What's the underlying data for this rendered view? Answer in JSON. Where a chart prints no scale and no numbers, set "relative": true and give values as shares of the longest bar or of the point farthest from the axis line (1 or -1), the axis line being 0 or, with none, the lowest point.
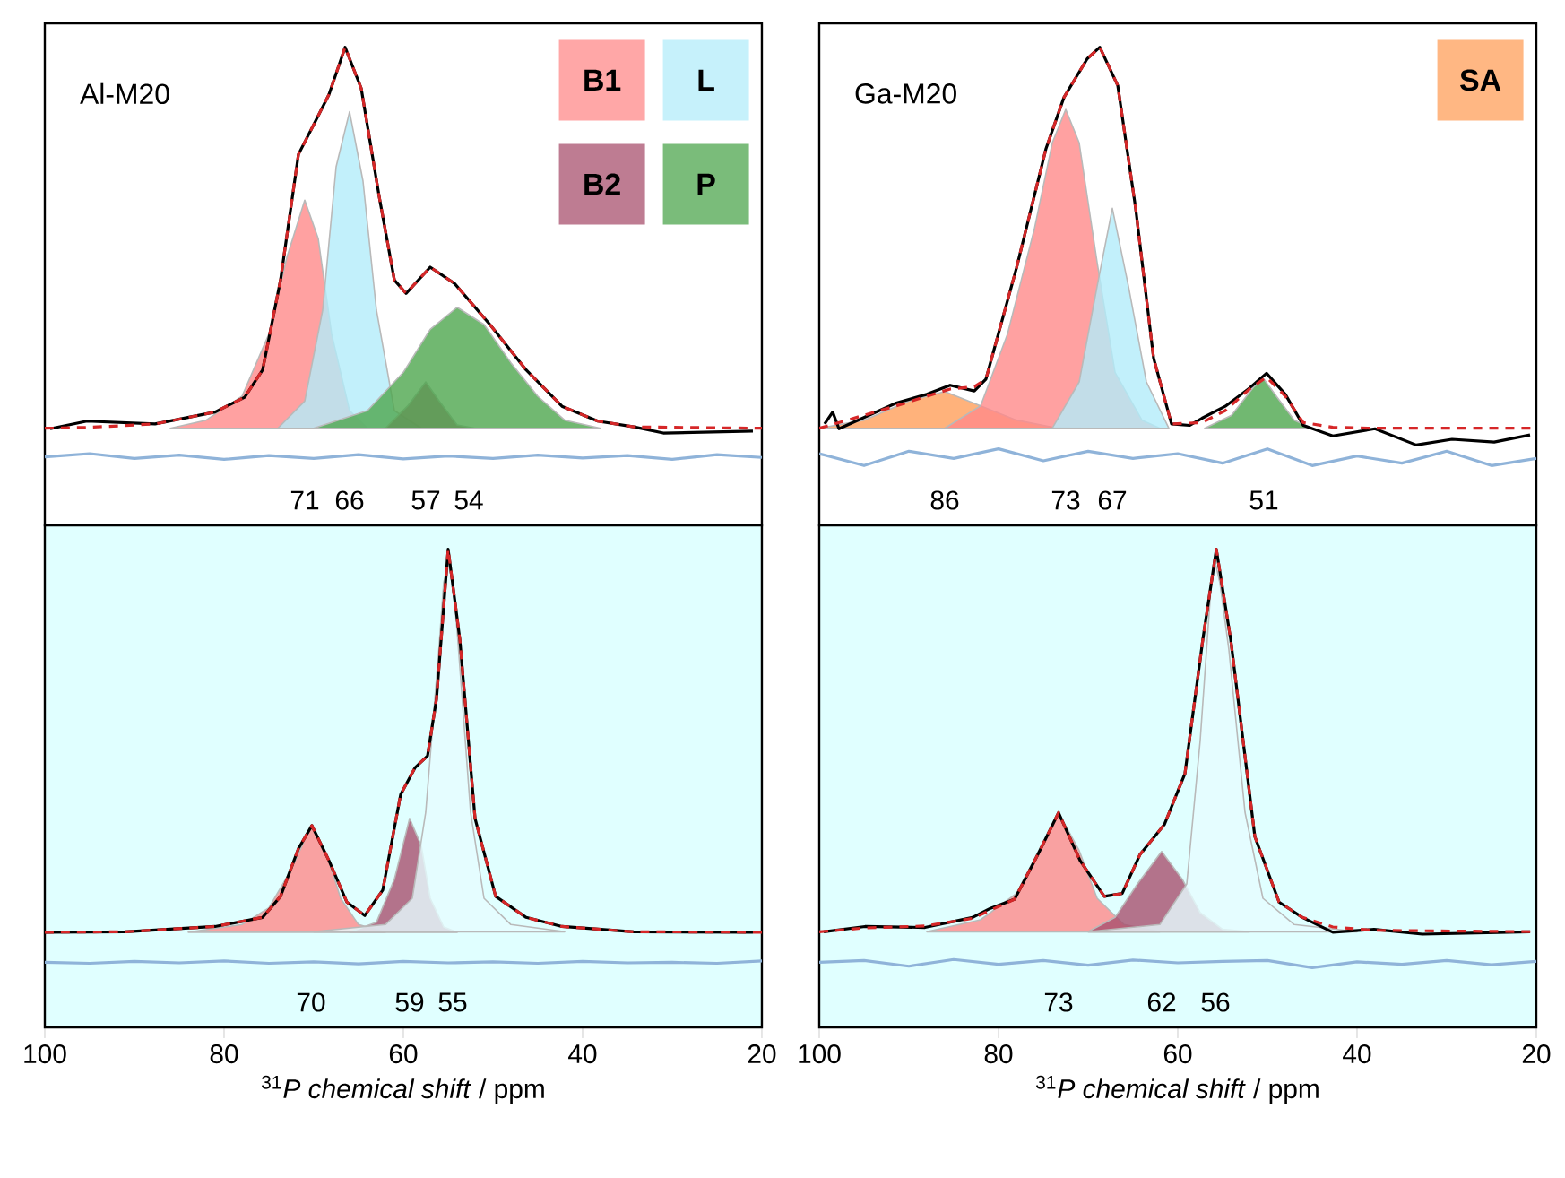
{
  "chart_data": [
    {
      "type": "line",
      "relative": true,
      "xlim": [
        100,
        20
      ],
      "tick_labels": false,
      "legend": "top right",
      "annotations": [
        "Al-M20",
        "71",
        "66",
        "57",
        "54"
      ],
      "series": [
        {
          "name": "B1",
          "type": "area",
          "color": "#ff8a8a",
          "x": [
            86,
            82,
            78,
            75,
            73,
            71,
            69.5,
            68,
            66,
            64
          ],
          "values": [
            0.203,
            0.22,
            0.27,
            0.4,
            0.56,
            0.68,
            0.6,
            0.4,
            0.24,
            0.203
          ]
        },
        {
          "name": "L",
          "type": "area",
          "color": "#b3ecfa",
          "x": [
            74,
            71,
            69,
            67.5,
            66,
            64.5,
            63,
            61,
            58
          ],
          "values": [
            0.203,
            0.26,
            0.45,
            0.75,
            0.865,
            0.72,
            0.45,
            0.24,
            0.203
          ]
        },
        {
          "name": "B2",
          "type": "area",
          "color": "#a8506e",
          "x": [
            62,
            59.5,
            57.5,
            56,
            54,
            52
          ],
          "values": [
            0.203,
            0.25,
            0.3,
            0.26,
            0.21,
            0.203
          ]
        },
        {
          "name": "P",
          "type": "area",
          "color": "#4ea64e",
          "x": [
            70,
            64,
            60,
            57,
            54,
            51,
            48,
            45,
            42,
            38
          ],
          "values": [
            0.203,
            0.24,
            0.32,
            0.41,
            0.456,
            0.42,
            0.34,
            0.27,
            0.22,
            0.203
          ]
        },
        {
          "color": "#8fb3d9",
          "x": [
            100,
            95,
            90,
            85,
            80,
            75,
            70,
            65,
            60,
            55,
            50,
            45,
            40,
            35,
            30,
            25,
            20
          ],
          "values": [
            0.143,
            0.15,
            0.14,
            0.147,
            0.138,
            0.146,
            0.14,
            0.148,
            0.139,
            0.145,
            0.14,
            0.147,
            0.141,
            0.146,
            0.138,
            0.148,
            0.142
          ]
        },
        {
          "color": "#000000",
          "x": [
            99.4,
            95.3,
            87.7,
            81,
            77.7,
            75.7,
            73.7,
            71.7,
            70,
            68.3,
            66.5,
            64.7,
            62.7,
            61,
            59.7,
            57,
            54.3,
            50.3,
            46.3,
            42.3,
            38.3,
            34.3,
            31,
            21
          ],
          "values": [
            0.202,
            0.218,
            0.212,
            0.237,
            0.268,
            0.325,
            0.513,
            0.776,
            0.838,
            0.901,
            1.0,
            0.914,
            0.688,
            0.513,
            0.485,
            0.54,
            0.506,
            0.419,
            0.325,
            0.249,
            0.218,
            0.206,
            0.193,
            0.197
          ]
        },
        {
          "color": "#d62728",
          "line_style": "dashed",
          "x": [
            100,
            95,
            87.7,
            81,
            77.7,
            75.7,
            73.7,
            71.7,
            70,
            68.3,
            66.5,
            64.7,
            62.7,
            61,
            59.7,
            57,
            54.3,
            50.3,
            46.3,
            42.3,
            38.3,
            34.3,
            20
          ],
          "values": [
            0.203,
            0.205,
            0.212,
            0.237,
            0.268,
            0.325,
            0.513,
            0.776,
            0.838,
            0.901,
            1.0,
            0.914,
            0.688,
            0.513,
            0.485,
            0.54,
            0.506,
            0.419,
            0.325,
            0.249,
            0.218,
            0.206,
            0.203
          ]
        }
      ]
    },
    {
      "type": "line",
      "relative": true,
      "xlim": [
        100,
        20
      ],
      "tick_labels": false,
      "legend": "top right",
      "annotations": [
        "Ga-M20",
        "86",
        "73",
        "67",
        "51"
      ],
      "series": [
        {
          "name": "SA",
          "type": "area",
          "color": "#ff9f5a",
          "x": [
            100,
            95,
            90,
            86,
            82,
            78,
            74,
            70
          ],
          "values": [
            0.203,
            0.22,
            0.26,
            0.28,
            0.25,
            0.22,
            0.205,
            0.203
          ]
        },
        {
          "type": "area",
          "color": "#ff8a8a",
          "x": [
            86,
            82,
            79,
            76,
            74,
            72.5,
            71,
            69,
            67,
            64,
            62
          ],
          "values": [
            0.203,
            0.25,
            0.4,
            0.62,
            0.8,
            0.87,
            0.8,
            0.55,
            0.32,
            0.22,
            0.203
          ]
        },
        {
          "type": "area",
          "color": "#b3ecfa",
          "x": [
            74,
            71,
            69,
            67.3,
            65.5,
            63.5,
            61
          ],
          "values": [
            0.203,
            0.3,
            0.5,
            0.663,
            0.5,
            0.3,
            0.203
          ]
        },
        {
          "type": "area",
          "color": "#4ea64e",
          "x": [
            57,
            54,
            51.5,
            50.4,
            49,
            47,
            45
          ],
          "values": [
            0.203,
            0.23,
            0.29,
            0.306,
            0.27,
            0.22,
            0.203
          ]
        },
        {
          "color": "#8fb3d9",
          "x": [
            100,
            95,
            90,
            85,
            80,
            75,
            70,
            65,
            60,
            55,
            50,
            45,
            40,
            35,
            30,
            25,
            20
          ],
          "values": [
            0.15,
            0.125,
            0.155,
            0.14,
            0.16,
            0.135,
            0.155,
            0.14,
            0.15,
            0.13,
            0.16,
            0.125,
            0.145,
            0.13,
            0.155,
            0.125,
            0.14
          ]
        },
        {
          "color": "#000000",
          "x": [
            99.4,
            98.5,
            97.8,
            91.4,
            88,
            85.4,
            82.7,
            81.4,
            78,
            74.7,
            72.7,
            70.1,
            68.7,
            66.7,
            64.7,
            62.7,
            60.7,
            58.7,
            57.3,
            54.7,
            52,
            50.1,
            48,
            46,
            42.7,
            38,
            33.4,
            29.4,
            24.7,
            20.7
          ],
          "values": [
            0.212,
            0.237,
            0.202,
            0.256,
            0.274,
            0.293,
            0.281,
            0.306,
            0.538,
            0.788,
            0.895,
            0.976,
            1.0,
            0.92,
            0.663,
            0.35,
            0.212,
            0.209,
            0.224,
            0.249,
            0.287,
            0.318,
            0.274,
            0.209,
            0.187,
            0.202,
            0.168,
            0.18,
            0.174,
            0.189
          ]
        },
        {
          "color": "#d62728",
          "line_style": "dashed",
          "x": [
            100,
            91.4,
            88,
            85.4,
            82.7,
            81.4,
            78,
            74.7,
            72.7,
            70.1,
            68.7,
            66.7,
            64.7,
            62.7,
            60.7,
            57.3,
            54.7,
            52,
            50.1,
            48,
            46,
            42.7,
            38,
            20
          ],
          "values": [
            0.203,
            0.25,
            0.27,
            0.285,
            0.29,
            0.306,
            0.538,
            0.788,
            0.895,
            0.976,
            1.0,
            0.92,
            0.663,
            0.35,
            0.212,
            0.215,
            0.24,
            0.285,
            0.31,
            0.27,
            0.215,
            0.205,
            0.203,
            0.203
          ]
        }
      ]
    },
    {
      "type": "line",
      "relative": true,
      "xlim": [
        100,
        20
      ],
      "xticks": [
        100,
        80,
        60,
        40,
        20
      ],
      "tick_labels": "x",
      "xlabel": "$^{31}$*P chemical shift* / ppm",
      "annotations": [
        "70",
        "59",
        "55"
      ],
      "series": [
        {
          "type": "area",
          "color": "#ff8a8a",
          "x": [
            84,
            78,
            75,
            72.5,
            70.3,
            68.5,
            67,
            65,
            62
          ],
          "values": [
            0.199,
            0.215,
            0.25,
            0.33,
            0.422,
            0.36,
            0.27,
            0.215,
            0.199
          ]
        },
        {
          "type": "area",
          "color": "#a8506e",
          "x": [
            66,
            63,
            61,
            59.3,
            58,
            57,
            55.5,
            54
          ],
          "values": [
            0.199,
            0.22,
            0.31,
            0.437,
            0.38,
            0.27,
            0.21,
            0.199
          ]
        },
        {
          "type": "area",
          "color": "#e6fcff",
          "x": [
            70,
            62,
            59,
            57.5,
            56,
            55.5,
            55,
            54.5,
            54,
            52.5,
            51,
            48,
            42
          ],
          "values": [
            0.2,
            0.215,
            0.27,
            0.45,
            0.8,
            0.93,
            0.97,
            0.93,
            0.83,
            0.45,
            0.27,
            0.215,
            0.2
          ]
        },
        {
          "color": "#8fb3d9",
          "x": [
            100,
            95,
            90,
            85,
            80,
            75,
            70,
            65,
            60,
            55,
            50,
            45,
            40,
            35,
            30,
            25,
            20
          ],
          "values": [
            0.136,
            0.134,
            0.138,
            0.135,
            0.139,
            0.134,
            0.137,
            0.133,
            0.138,
            0.135,
            0.137,
            0.134,
            0.138,
            0.135,
            0.136,
            0.134,
            0.139
          ]
        },
        {
          "color": "#000000",
          "x": [
            100,
            91,
            81,
            75.7,
            73.7,
            71.7,
            70.2,
            68.3,
            66.3,
            64.3,
            62.3,
            60.3,
            58.7,
            57.3,
            56.3,
            55,
            53.7,
            52,
            49.7,
            46.3,
            42.3,
            34.3,
            21
          ],
          "values": [
            0.199,
            0.2,
            0.211,
            0.23,
            0.274,
            0.374,
            0.422,
            0.349,
            0.262,
            0.234,
            0.287,
            0.487,
            0.543,
            0.568,
            0.687,
            1.0,
            0.812,
            0.437,
            0.274,
            0.23,
            0.211,
            0.2,
            0.199
          ]
        },
        {
          "color": "#d62728",
          "line_style": "dashed",
          "x": [
            100,
            91,
            81,
            75.7,
            73.7,
            71.7,
            70.2,
            68.3,
            66.3,
            64.3,
            62.3,
            60.3,
            58.7,
            57.3,
            56.3,
            55,
            53.7,
            52,
            49.7,
            46.3,
            42.3,
            34.3,
            20
          ],
          "values": [
            0.199,
            0.2,
            0.211,
            0.23,
            0.274,
            0.374,
            0.422,
            0.349,
            0.262,
            0.234,
            0.287,
            0.487,
            0.543,
            0.568,
            0.687,
            1.0,
            0.812,
            0.437,
            0.274,
            0.23,
            0.211,
            0.2,
            0.199
          ]
        }
      ]
    },
    {
      "type": "line",
      "relative": true,
      "xlim": [
        100,
        20
      ],
      "xticks": [
        100,
        80,
        60,
        40,
        20
      ],
      "tick_labels": "x",
      "xlabel": "$^{31}$*P chemical shift* / ppm",
      "annotations": [
        "73",
        "62",
        "56"
      ],
      "series": [
        {
          "type": "area",
          "color": "#ff8a8a",
          "x": [
            88,
            82,
            78,
            75.5,
            73.3,
            71,
            69,
            66,
            62
          ],
          "values": [
            0.2,
            0.225,
            0.28,
            0.37,
            0.449,
            0.37,
            0.27,
            0.215,
            0.2
          ]
        },
        {
          "type": "area",
          "color": "#a8506e",
          "x": [
            70,
            67,
            64.5,
            61.8,
            59.5,
            57.5,
            55,
            52
          ],
          "values": [
            0.2,
            0.23,
            0.3,
            0.368,
            0.31,
            0.24,
            0.205,
            0.2
          ]
        },
        {
          "type": "area",
          "color": "#e6fcff",
          "x": [
            70,
            62,
            59,
            57.5,
            56.3,
            55.8,
            55.3,
            54.3,
            52.5,
            50.5,
            47,
            40
          ],
          "values": [
            0.2,
            0.215,
            0.3,
            0.6,
            0.92,
            0.97,
            0.93,
            0.79,
            0.45,
            0.27,
            0.215,
            0.2
          ]
        },
        {
          "color": "#8fb3d9",
          "x": [
            100,
            95,
            90,
            85,
            80,
            75,
            70,
            65,
            60,
            55,
            50,
            45,
            40,
            35,
            30,
            25,
            20
          ],
          "values": [
            0.136,
            0.14,
            0.128,
            0.142,
            0.132,
            0.14,
            0.13,
            0.141,
            0.135,
            0.138,
            0.14,
            0.125,
            0.137,
            0.132,
            0.14,
            0.131,
            0.138
          ]
        },
        {
          "color": "#000000",
          "x": [
            99.5,
            94.9,
            88.2,
            82.9,
            80.9,
            78.2,
            75.6,
            73.3,
            70.9,
            68.2,
            66.2,
            64.2,
            61.5,
            59.2,
            57.2,
            55.7,
            54.1,
            51.4,
            48.7,
            46.1,
            42.7,
            38.1,
            32.7,
            20.7
          ],
          "values": [
            0.2,
            0.211,
            0.209,
            0.23,
            0.249,
            0.268,
            0.362,
            0.449,
            0.349,
            0.274,
            0.28,
            0.362,
            0.424,
            0.531,
            0.812,
            1.0,
            0.812,
            0.399,
            0.262,
            0.23,
            0.199,
            0.205,
            0.195,
            0.2
          ]
        },
        {
          "color": "#d62728",
          "line_style": "dashed",
          "x": [
            100,
            94.9,
            88.2,
            82.9,
            80.9,
            78.2,
            75.6,
            73.3,
            70.9,
            68.2,
            66.2,
            64.2,
            61.5,
            59.2,
            57.2,
            55.7,
            54.1,
            51.4,
            48.7,
            46.1,
            42.7,
            38.1,
            20
          ],
          "values": [
            0.2,
            0.208,
            0.212,
            0.228,
            0.245,
            0.268,
            0.362,
            0.449,
            0.349,
            0.274,
            0.28,
            0.362,
            0.424,
            0.531,
            0.812,
            1.0,
            0.812,
            0.399,
            0.262,
            0.23,
            0.21,
            0.203,
            0.2
          ]
        }
      ]
    }
  ]
}
